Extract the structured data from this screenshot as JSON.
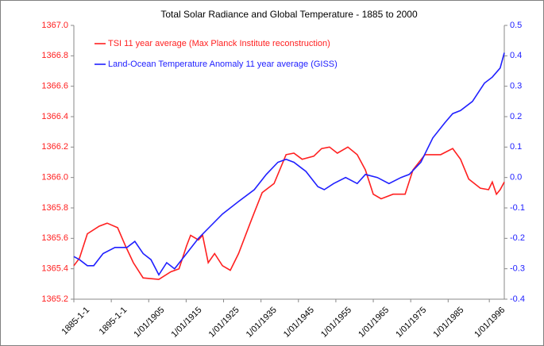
{
  "chart_data": {
    "type": "line",
    "title": "Total Solar Radiance and Global Temperature - 1885 to 2000",
    "legend": "upper left",
    "xlim": [
      1885,
      2000
    ],
    "xticks": [
      {
        "value": 1885,
        "label": "1885-1-1"
      },
      {
        "value": 1895,
        "label": "1895-1-1"
      },
      {
        "value": 1905,
        "label": "1/01/1905"
      },
      {
        "value": 1915,
        "label": "1/01/1915"
      },
      {
        "value": 1925,
        "label": "1/01/1925"
      },
      {
        "value": 1935,
        "label": "1/01/1935"
      },
      {
        "value": 1945,
        "label": "1/01/1945"
      },
      {
        "value": 1955,
        "label": "1/01/1955"
      },
      {
        "value": 1965,
        "label": "1/01/1965"
      },
      {
        "value": 1975,
        "label": "1/01/1975"
      },
      {
        "value": 1985,
        "label": "1/01/1985"
      },
      {
        "value": 1996,
        "label": "1/01/1996"
      }
    ],
    "ylim": [
      1365.2,
      1367
    ],
    "yticks": [
      {
        "value": 1365.2,
        "label": "1365.2"
      },
      1365.4,
      1365.6,
      1365.8,
      {
        "value": 1366,
        "label": "1366.0"
      },
      1366.2,
      1366.4,
      1366.6,
      1366.8,
      {
        "value": 1367,
        "label": "1367.0"
      }
    ],
    "y2lim": [
      -0.4,
      0.5
    ],
    "y2ticks": [
      -0.4,
      -0.3,
      -0.2,
      -0.1,
      {
        "value": 0,
        "label": "0.0"
      },
      0.1,
      0.2,
      0.3,
      0.4,
      0.5
    ],
    "series": [
      {
        "name": "TSI 11 year average (Max Planck Institute reconstruction)",
        "color": "#ff2020",
        "x": [
          1885,
          1886.5,
          1888.6,
          1891.8,
          1893.9,
          1896.7,
          1898.8,
          1900.9,
          1903.5,
          1907.7,
          1910.9,
          1913.1,
          1915.1,
          1916.2,
          1918.3,
          1919.4,
          1920.9,
          1922.6,
          1924.7,
          1926.8,
          1929,
          1932.1,
          1933.2,
          1935.3,
          1938.5,
          1941.7,
          1943.8,
          1946,
          1949.1,
          1951.2,
          1953.3,
          1955.4,
          1958.2,
          1960.7,
          1962.9,
          1965,
          1967.1,
          1970.3,
          1973.5,
          1975.6,
          1978.8,
          1983,
          1986.2,
          1988.3,
          1990.5,
          1993.6,
          1995.8,
          1996.8,
          1997.9,
          1998.9,
          2000
        ],
        "values": [
          1365.42,
          1365.47,
          1365.63,
          1365.68,
          1365.7,
          1365.67,
          1365.55,
          1365.44,
          1365.34,
          1365.33,
          1365.38,
          1365.4,
          1365.55,
          1365.62,
          1365.59,
          1365.62,
          1365.44,
          1365.5,
          1365.42,
          1365.39,
          1365.5,
          1365.7,
          1365.77,
          1365.9,
          1365.96,
          1366.15,
          1366.16,
          1366.12,
          1366.14,
          1366.19,
          1366.2,
          1366.16,
          1366.2,
          1366.15,
          1366.05,
          1365.89,
          1365.86,
          1365.89,
          1365.89,
          1366.05,
          1366.15,
          1366.15,
          1366.19,
          1366.12,
          1365.99,
          1365.93,
          1365.92,
          1365.97,
          1365.89,
          1365.92,
          1365.97
        ]
      },
      {
        "name": "Land-Ocean Temperature Anomaly 11 year average (GISS)",
        "color": "#2020ff",
        "axis": "y2",
        "x": [
          1885,
          1886.5,
          1888.6,
          1890.3,
          1892.8,
          1896,
          1899.2,
          1901.3,
          1903.5,
          1905.6,
          1907.7,
          1909.8,
          1911.9,
          1915.1,
          1918.3,
          1921.5,
          1924.7,
          1928.9,
          1933.2,
          1936.4,
          1939.5,
          1941.7,
          1943.8,
          1947,
          1950.2,
          1951.9,
          1954.4,
          1957.6,
          1960.7,
          1962.9,
          1966.1,
          1969.2,
          1972.4,
          1974.6,
          1977.7,
          1980.9,
          1984.1,
          1986.2,
          1988.3,
          1991.5,
          1994.7,
          1996.8,
          1998.9,
          2000
        ],
        "values": [
          -0.26,
          -0.27,
          -0.29,
          -0.29,
          -0.25,
          -0.23,
          -0.23,
          -0.21,
          -0.25,
          -0.27,
          -0.32,
          -0.28,
          -0.3,
          -0.25,
          -0.2,
          -0.16,
          -0.12,
          -0.08,
          -0.04,
          0.01,
          0.05,
          0.06,
          0.05,
          0.02,
          -0.03,
          -0.04,
          -0.02,
          0,
          -0.02,
          0.01,
          0,
          -0.02,
          0,
          0.01,
          0.05,
          0.13,
          0.18,
          0.21,
          0.22,
          0.25,
          0.31,
          0.33,
          0.36,
          0.41
        ]
      }
    ]
  }
}
